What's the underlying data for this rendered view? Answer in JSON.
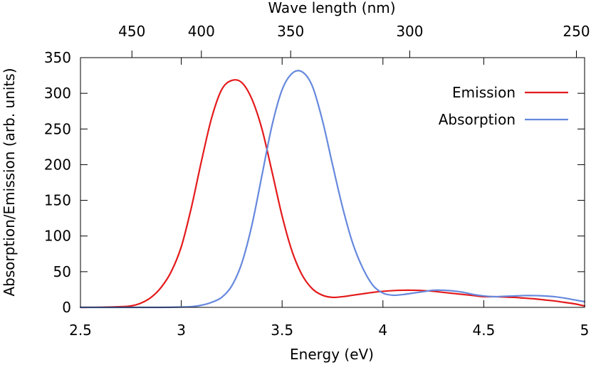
{
  "chart_data": {
    "type": "line",
    "title": "",
    "xlabel": "Energy (eV)",
    "ylabel": "Absorption/Emission (arb. units)",
    "x2label": "Wave length (nm)",
    "xlim": [
      2.5,
      5
    ],
    "ylim": [
      0,
      350
    ],
    "xticks": [
      2.5,
      3,
      3.5,
      4,
      4.5,
      5
    ],
    "xtick_labels": [
      "2.5",
      "3",
      "3.5",
      "4",
      "4.5",
      "5"
    ],
    "yticks": [
      0,
      50,
      100,
      150,
      200,
      250,
      300,
      350
    ],
    "ytick_labels": [
      "0",
      "50",
      "100",
      "150",
      "200",
      "250",
      "300",
      "350"
    ],
    "x2ticks_nm": [
      450,
      400,
      350,
      300,
      250
    ],
    "x2tick_labels": [
      "450",
      "400",
      "350",
      "300",
      "250"
    ],
    "grid": false,
    "legend_position": "top-right",
    "series": [
      {
        "name": "Emission",
        "color": "#e41a1c",
        "x": [
          2.5,
          2.6,
          2.7,
          2.75,
          2.8,
          2.85,
          2.9,
          2.95,
          3.0,
          3.05,
          3.1,
          3.15,
          3.2,
          3.25,
          3.3,
          3.35,
          3.4,
          3.45,
          3.5,
          3.55,
          3.6,
          3.65,
          3.7,
          3.75,
          3.8,
          3.85,
          3.9,
          3.95,
          4.0,
          4.05,
          4.1,
          4.15,
          4.2,
          4.25,
          4.3,
          4.35,
          4.4,
          4.45,
          4.5,
          4.55,
          4.6,
          4.65,
          4.7,
          4.75,
          4.8,
          4.85,
          4.9,
          4.95,
          5.0
        ],
        "values": [
          0,
          0.2,
          1,
          2,
          6,
          14,
          28,
          50,
          85,
          140,
          205,
          265,
          305,
          318,
          315,
          292,
          250,
          190,
          128,
          78,
          45,
          26,
          17,
          14,
          15,
          17,
          19,
          21,
          22.5,
          23.5,
          24,
          24,
          23.5,
          22.5,
          21,
          19.5,
          18,
          16.5,
          15,
          15,
          14.5,
          14,
          13,
          12,
          10.5,
          9,
          7,
          5,
          2
        ]
      },
      {
        "name": "Absorption",
        "color": "#6688dd",
        "x": [
          2.5,
          2.7,
          2.9,
          3.0,
          3.05,
          3.1,
          3.15,
          3.2,
          3.25,
          3.3,
          3.35,
          3.4,
          3.45,
          3.5,
          3.55,
          3.6,
          3.65,
          3.7,
          3.75,
          3.8,
          3.85,
          3.9,
          3.95,
          4.0,
          4.05,
          4.1,
          4.15,
          4.2,
          4.25,
          4.3,
          4.35,
          4.4,
          4.45,
          4.5,
          4.55,
          4.6,
          4.65,
          4.7,
          4.75,
          4.8,
          4.85,
          4.9,
          4.95,
          5.0
        ],
        "values": [
          0,
          0,
          0,
          0.5,
          1,
          3,
          7,
          14,
          30,
          62,
          115,
          185,
          255,
          305,
          328,
          330,
          310,
          262,
          200,
          140,
          90,
          55,
          31,
          20,
          17,
          18,
          20,
          22,
          24,
          24,
          23,
          21,
          18,
          16,
          15,
          15.5,
          16,
          16.5,
          16.5,
          16,
          15,
          13,
          10.5,
          8
        ]
      }
    ]
  }
}
